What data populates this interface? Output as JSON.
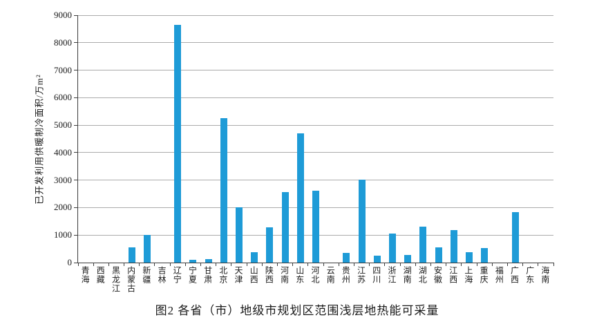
{
  "page": {
    "background": "#ffffff"
  },
  "chart_data": {
    "type": "bar",
    "title": "图2 各省（市）地级市规划区范围浅层地热能可采量",
    "ylabel": "已开发利用供暖制冷面积/万m²",
    "xlabel": "",
    "ylim": [
      0,
      9000
    ],
    "ytick_step": 1000,
    "grid": true,
    "legend": false,
    "bar_color": "#1e9bd7",
    "gridline_color": "#ababab",
    "axis_color": "#3c3c3c",
    "categories": [
      "青海",
      "西藏",
      "黑龙江",
      "内蒙古",
      "新疆",
      "吉林",
      "辽宁",
      "宁夏",
      "甘肃",
      "北京",
      "天津",
      "山西",
      "陕西",
      "河南",
      "山东",
      "河北",
      "云南",
      "贵州",
      "江苏",
      "四川",
      "浙江",
      "湖南",
      "湖北",
      "安徽",
      "江西",
      "上海",
      "重庆",
      "福州",
      "广西",
      "广东",
      "海南"
    ],
    "values": [
      0,
      0,
      0,
      550,
      1000,
      0,
      8650,
      100,
      130,
      5250,
      2020,
      380,
      1270,
      2560,
      4710,
      2620,
      0,
      350,
      3020,
      240,
      1050,
      280,
      1310,
      550,
      1190,
      370,
      520,
      0,
      1840,
      0,
      0
    ]
  }
}
